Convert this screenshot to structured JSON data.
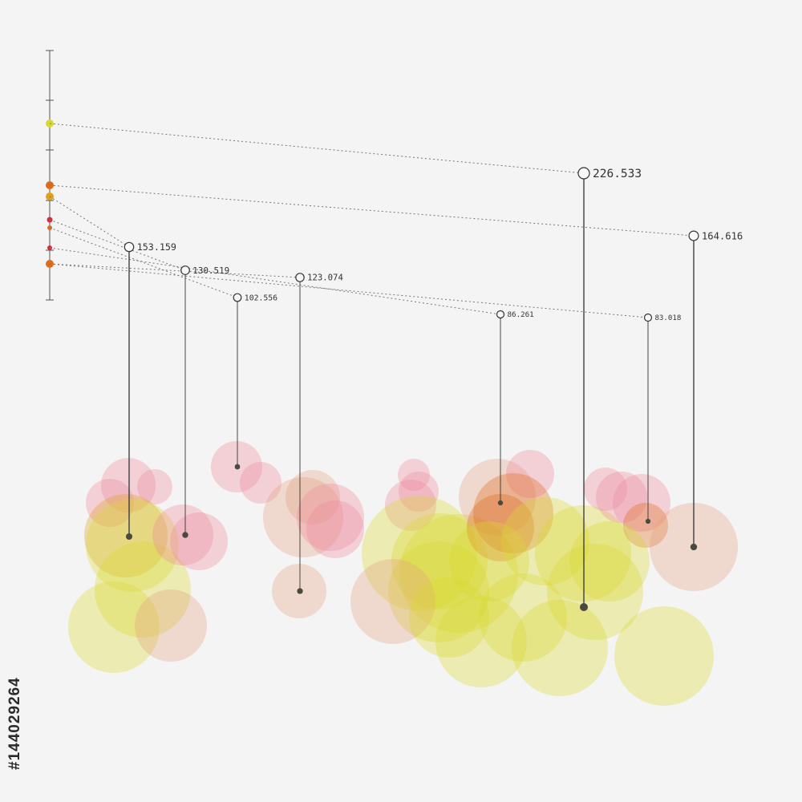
{
  "stock_id": "#144029264",
  "colors": {
    "yellow": "#d8d832",
    "amber": "#e0a020",
    "orange": "#e06a1a",
    "red": "#d8283a",
    "pink": "#ec8a9a",
    "peach": "#e6a080",
    "stem": "#333333",
    "dots": "#777777"
  },
  "chart_data": {
    "type": "bubble-drop",
    "title": "",
    "xlabel": "",
    "ylabel": "",
    "grid": false,
    "legend": "none",
    "axis_markers": [
      {
        "color": "yellow"
      },
      {
        "color": "orange"
      },
      {
        "color": "amber"
      },
      {
        "color": "red"
      },
      {
        "color": "orange"
      },
      {
        "color": "red"
      },
      {
        "color": "orange"
      }
    ],
    "drops": [
      {
        "label": "226.533",
        "value": 226.533,
        "marker": 0
      },
      {
        "label": "164.616",
        "value": 164.616,
        "marker": 1
      },
      {
        "label": "153.159",
        "value": 153.159,
        "marker": 2
      },
      {
        "label": "130.519",
        "value": 130.519,
        "marker": 3
      },
      {
        "label": "123.074",
        "value": 123.074,
        "marker": 6
      },
      {
        "label": "102.556",
        "value": 102.556,
        "marker": 4
      },
      {
        "label": "86.261",
        "value": 86.261,
        "marker": 5
      },
      {
        "label": "83.018",
        "value": 83.018,
        "marker": 6
      }
    ]
  }
}
